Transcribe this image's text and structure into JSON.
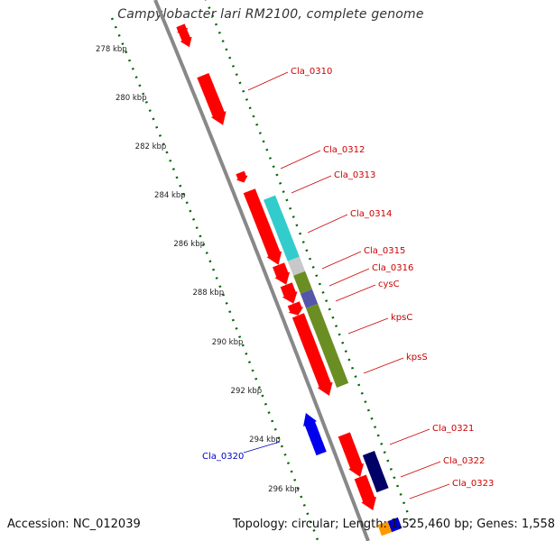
{
  "title": "Campylobacter lari RM2100, complete genome",
  "footer": {
    "accession": "Accession: NC_012039",
    "topology": "Topology: circular; Length: 1,525,460 bp; Genes: 1,558"
  },
  "colors": {
    "forward_cds": "#ff0000",
    "reverse_cds": "#0000ee",
    "dark_blue": "#000066",
    "cyan": "#33cccc",
    "olive": "#6b8e23",
    "grey": "#c8c8c8",
    "violet": "#5555aa",
    "tick_green": "#006600",
    "backbone": "#888888",
    "label_red": "#cc0000",
    "label_blue": "#0000cc"
  },
  "ticks": [
    {
      "label": "278 kbp",
      "kb": 278
    },
    {
      "label": "280 kbp",
      "kb": 280
    },
    {
      "label": "282 kbp",
      "kb": 282
    },
    {
      "label": "284 kbp",
      "kb": 284
    },
    {
      "label": "286 kbp",
      "kb": 286
    },
    {
      "label": "288 kbp",
      "kb": 288
    },
    {
      "label": "290 kbp",
      "kb": 290
    },
    {
      "label": "292 kbp",
      "kb": 292
    },
    {
      "label": "294 kbp",
      "kb": 294
    },
    {
      "label": "296 kbp",
      "kb": 296
    }
  ],
  "features": [
    {
      "name": "Cla_0310",
      "strand": "+"
    },
    {
      "name": "Cla_0312",
      "strand": "+"
    },
    {
      "name": "Cla_0313",
      "strand": "+"
    },
    {
      "name": "Cla_0314",
      "strand": "+"
    },
    {
      "name": "Cla_0315",
      "strand": "+"
    },
    {
      "name": "Cla_0316",
      "strand": "+"
    },
    {
      "name": "cysC",
      "strand": "+"
    },
    {
      "name": "kpsC",
      "strand": "+"
    },
    {
      "name": "kpsS",
      "strand": "+"
    },
    {
      "name": "Cla_0320",
      "strand": "-"
    },
    {
      "name": "Cla_0321",
      "strand": "+"
    },
    {
      "name": "Cla_0322",
      "strand": "+"
    },
    {
      "name": "Cla_0323",
      "strand": "+"
    }
  ]
}
